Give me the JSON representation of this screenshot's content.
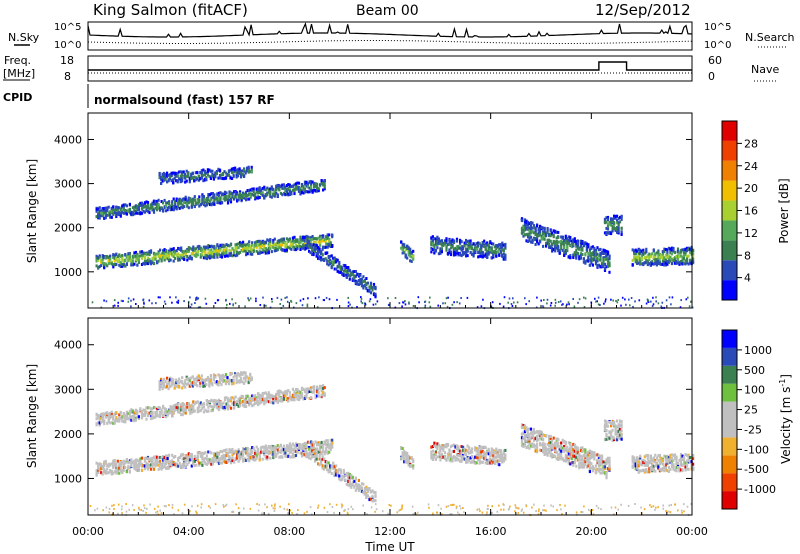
{
  "header": {
    "station": "King Salmon (fitACF)",
    "beam": "Beam 00",
    "date": "12/Sep/2012"
  },
  "noise_panel": {
    "left_label": "N.Sky",
    "right_label": "N.Search",
    "left_ticks": [
      "10^5",
      "10^0"
    ],
    "right_ticks": [
      "10^5",
      "10^0"
    ]
  },
  "freq_panel": {
    "left_label_1": "Freq.",
    "left_label_2": "[MHz]",
    "right_label": "Nave",
    "left_ticks": [
      "18",
      "8"
    ],
    "right_ticks": [
      "60",
      "0"
    ]
  },
  "cpid": {
    "label": "CPID",
    "text": "normalsound (fast) 157 RF"
  },
  "colors": {
    "power": [
      "#0000ff",
      "#2a4ab8",
      "#3b8050",
      "#56a85a",
      "#a8d030",
      "#f0c000",
      "#f08000",
      "#f04000",
      "#e00000"
    ],
    "velocity": [
      "#e00000",
      "#f04000",
      "#f08000",
      "#f0b030",
      "#c0c0c0",
      "#c0c0c0",
      "#70c040",
      "#3b8050",
      "#2a4ab8",
      "#0000ff"
    ]
  },
  "power_panel": {
    "ylabel": "Slant Range [km]",
    "yticks": [
      "1000",
      "2000",
      "3000",
      "4000"
    ],
    "colorbar_label": "Power [dB]",
    "colorbar_ticks": [
      "4",
      "8",
      "12",
      "16",
      "20",
      "24",
      "28"
    ]
  },
  "velocity_panel": {
    "ylabel": "Slant Range [km]",
    "yticks": [
      "1000",
      "2000",
      "3000",
      "4000"
    ],
    "colorbar_label": "Velocity [m s",
    "colorbar_unit_exp": "-1",
    "colorbar_unit_close": "]",
    "colorbar_ticks": [
      "-1000",
      "-500",
      "-100",
      "-25",
      "25",
      "100",
      "500",
      "1000"
    ]
  },
  "xaxis": {
    "label": "Time UT",
    "ticks": [
      "00:00",
      "04:00",
      "08:00",
      "12:00",
      "16:00",
      "20:00",
      "00:00"
    ]
  },
  "chart_data": {
    "type": "heatmap",
    "x_unit": "hours UT",
    "xlim": [
      0,
      24
    ],
    "ylim_km": [
      180,
      4600
    ],
    "echo_bands": [
      {
        "name": "main band",
        "t_start": 0.3,
        "t_end": 9.7,
        "range_start": 1250,
        "range_end": 1750,
        "width": 300,
        "power": 18
      },
      {
        "name": "upper band",
        "t_start": 0.3,
        "t_end": 9.4,
        "range_start": 2350,
        "range_end": 3000,
        "width": 260,
        "power": 10
      },
      {
        "name": "top patches",
        "t_start": 2.8,
        "t_end": 6.5,
        "range_start": 3150,
        "range_end": 3300,
        "width": 250,
        "power": 8
      },
      {
        "name": "late descending",
        "t_start": 8.5,
        "t_end": 11.4,
        "range_start": 1700,
        "range_end": 600,
        "width": 280,
        "power": 8
      },
      {
        "name": "mid patch A",
        "t_start": 12.4,
        "t_end": 12.9,
        "range_start": 1600,
        "range_end": 1350,
        "width": 280,
        "power": 14
      },
      {
        "name": "mid patch B",
        "t_start": 13.6,
        "t_end": 16.6,
        "range_start": 1650,
        "range_end": 1500,
        "width": 380,
        "power": 9
      },
      {
        "name": "evening descending",
        "t_start": 17.2,
        "t_end": 20.7,
        "range_start": 2000,
        "range_end": 1250,
        "width": 480,
        "power": 10
      },
      {
        "name": "cusp patch",
        "t_start": 20.5,
        "t_end": 21.2,
        "range_start": 2100,
        "range_end": 2100,
        "width": 450,
        "power": 10
      },
      {
        "name": "night band",
        "t_start": 21.6,
        "t_end": 24.0,
        "range_start": 1350,
        "range_end": 1400,
        "width": 380,
        "power": 16
      }
    ],
    "nave_step": {
      "t_start": 20.3,
      "t_end": 21.4,
      "value": 60
    }
  }
}
